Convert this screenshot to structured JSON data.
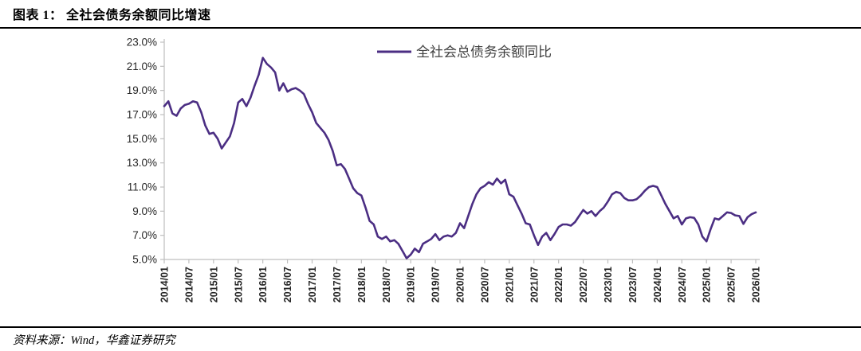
{
  "header": {
    "title": "图表 1： 全社会债务余额同比增速"
  },
  "footer": {
    "source": "资料来源：Wind，华鑫证券研究"
  },
  "colors": {
    "line": "#4b2e83",
    "axis": "#bfbfbf",
    "axis_text": "#262626",
    "legend_text": "#404040"
  },
  "chart_data": {
    "type": "line",
    "title": "全社会债务余额同比增速",
    "legend_position": "top-center",
    "grid": false,
    "x_start": "2014/01",
    "x_end": "2026/01",
    "x_frequency": "monthly",
    "ylim": [
      5,
      23
    ],
    "xlabel": "",
    "ylabel": "",
    "y_ticks": [
      {
        "value": 5,
        "label": "5.0%"
      },
      {
        "value": 7,
        "label": "7.0%"
      },
      {
        "value": 9,
        "label": "9.0%"
      },
      {
        "value": 11,
        "label": "11.0%"
      },
      {
        "value": 13,
        "label": "13.0%"
      },
      {
        "value": 15,
        "label": "15.0%"
      },
      {
        "value": 17,
        "label": "17.0%"
      },
      {
        "value": 19,
        "label": "19.0%"
      },
      {
        "value": 21,
        "label": "21.0%"
      },
      {
        "value": 23,
        "label": "23.0%"
      }
    ],
    "x_ticks": [
      {
        "index": 0,
        "label": "2014/01"
      },
      {
        "index": 6,
        "label": "2014/07"
      },
      {
        "index": 12,
        "label": "2015/01"
      },
      {
        "index": 18,
        "label": "2015/07"
      },
      {
        "index": 24,
        "label": "2016/01"
      },
      {
        "index": 30,
        "label": "2016/07"
      },
      {
        "index": 36,
        "label": "2017/01"
      },
      {
        "index": 42,
        "label": "2017/07"
      },
      {
        "index": 48,
        "label": "2018/01"
      },
      {
        "index": 54,
        "label": "2018/07"
      },
      {
        "index": 60,
        "label": "2019/01"
      },
      {
        "index": 66,
        "label": "2019/07"
      },
      {
        "index": 72,
        "label": "2020/01"
      },
      {
        "index": 78,
        "label": "2020/07"
      },
      {
        "index": 84,
        "label": "2021/01"
      },
      {
        "index": 90,
        "label": "2021/07"
      },
      {
        "index": 96,
        "label": "2022/01"
      },
      {
        "index": 102,
        "label": "2022/07"
      },
      {
        "index": 108,
        "label": "2023/01"
      },
      {
        "index": 114,
        "label": "2023/07"
      },
      {
        "index": 120,
        "label": "2024/01"
      },
      {
        "index": 126,
        "label": "2024/07"
      },
      {
        "index": 132,
        "label": "2025/01"
      },
      {
        "index": 138,
        "label": "2025/07"
      },
      {
        "index": 144,
        "label": "2026/01"
      }
    ],
    "series": [
      {
        "name": "全社会总债务余额同比",
        "color": "#4b2e83",
        "values": [
          17.7,
          18.1,
          17.1,
          16.9,
          17.5,
          17.8,
          17.9,
          18.1,
          18.0,
          17.2,
          16.1,
          15.4,
          15.5,
          15.0,
          14.2,
          14.7,
          15.2,
          16.3,
          18.0,
          18.3,
          17.7,
          18.4,
          19.4,
          20.3,
          21.7,
          21.2,
          20.9,
          20.5,
          19.0,
          19.6,
          18.9,
          19.1,
          19.2,
          19.0,
          18.7,
          17.9,
          17.2,
          16.3,
          15.9,
          15.5,
          14.9,
          14.0,
          12.8,
          12.9,
          12.5,
          11.7,
          10.9,
          10.5,
          10.3,
          9.3,
          8.2,
          7.9,
          6.9,
          6.7,
          6.9,
          6.5,
          6.6,
          6.3,
          5.7,
          5.1,
          5.4,
          5.9,
          5.6,
          6.3,
          6.5,
          6.7,
          7.1,
          6.6,
          6.9,
          7.0,
          6.9,
          7.2,
          8.0,
          7.6,
          8.6,
          9.6,
          10.4,
          10.9,
          11.1,
          11.4,
          11.2,
          11.7,
          11.3,
          11.6,
          10.4,
          10.2,
          9.5,
          8.8,
          8.0,
          7.9,
          7.0,
          6.2,
          6.9,
          7.2,
          6.6,
          7.1,
          7.7,
          7.9,
          7.9,
          7.8,
          8.1,
          8.6,
          9.1,
          8.8,
          9.0,
          8.6,
          9.0,
          9.3,
          9.8,
          10.4,
          10.6,
          10.5,
          10.1,
          9.9,
          9.9,
          10.0,
          10.3,
          10.7,
          11.0,
          11.1,
          11.0,
          10.3,
          9.6,
          9.0,
          8.4,
          8.6,
          7.9,
          8.4,
          8.5,
          8.45,
          7.9,
          6.9,
          6.5,
          7.5,
          8.4,
          8.3,
          8.6,
          8.9,
          8.85,
          8.65,
          8.6,
          7.95,
          8.5,
          8.75,
          8.9
        ]
      }
    ]
  }
}
